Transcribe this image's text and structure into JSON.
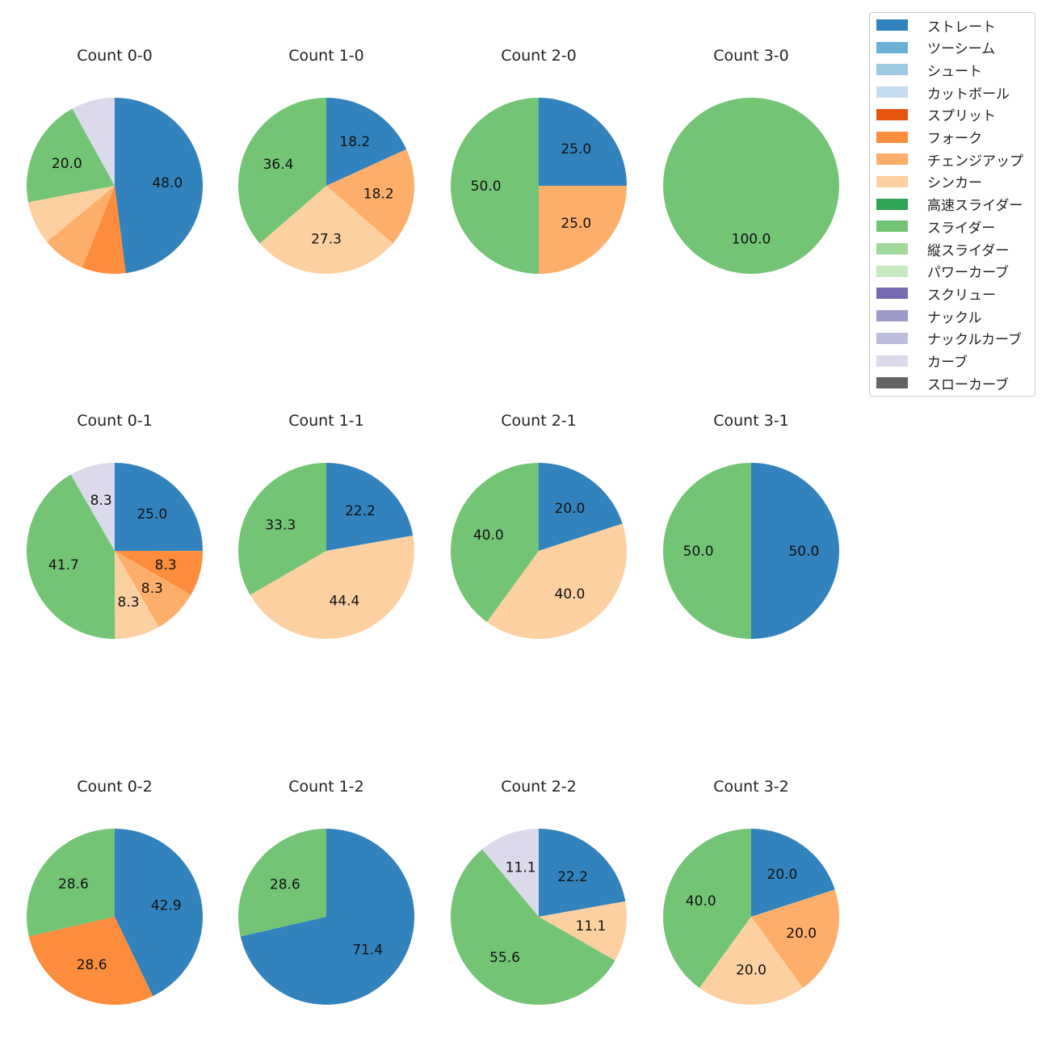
{
  "chart_data": {
    "type": "pie",
    "legend": {
      "placement": "top-right",
      "entries": [
        {
          "name": "ストレート",
          "color": "#3182bd"
        },
        {
          "name": "ツーシーム",
          "color": "#6baed6"
        },
        {
          "name": "シュート",
          "color": "#9ecae1"
        },
        {
          "name": "カットボール",
          "color": "#c6dbef"
        },
        {
          "name": "スプリット",
          "color": "#e6550d"
        },
        {
          "name": "フォーク",
          "color": "#fd8d3c"
        },
        {
          "name": "チェンジアップ",
          "color": "#fdae6b"
        },
        {
          "name": "シンカー",
          "color": "#fdd0a2"
        },
        {
          "name": "高速スライダー",
          "color": "#31a354"
        },
        {
          "name": "スライダー",
          "color": "#74c476"
        },
        {
          "name": "縦スライダー",
          "color": "#a1d99b"
        },
        {
          "name": "パワーカーブ",
          "color": "#c7e9c0"
        },
        {
          "name": "スクリュー",
          "color": "#756bb1"
        },
        {
          "name": "ナックル",
          "color": "#9e9ac8"
        },
        {
          "name": "ナックルカーブ",
          "color": "#bcbddc"
        },
        {
          "name": "カーブ",
          "color": "#dadaeb"
        },
        {
          "name": "スローカーブ",
          "color": "#636363"
        }
      ]
    },
    "pies": [
      {
        "title": "Count 0-0",
        "slices": [
          {
            "pitch": "ストレート",
            "value": 48.0,
            "label": "48.0"
          },
          {
            "pitch": "フォーク",
            "value": 8.0
          },
          {
            "pitch": "チェンジアップ",
            "value": 8.0
          },
          {
            "pitch": "シンカー",
            "value": 8.0
          },
          {
            "pitch": "スライダー",
            "value": 20.0,
            "label": "20.0"
          },
          {
            "pitch": "カーブ",
            "value": 8.0
          }
        ]
      },
      {
        "title": "Count 1-0",
        "slices": [
          {
            "pitch": "ストレート",
            "value": 18.2,
            "label": "18.2"
          },
          {
            "pitch": "チェンジアップ",
            "value": 18.2,
            "label": "18.2"
          },
          {
            "pitch": "シンカー",
            "value": 27.3,
            "label": "27.3"
          },
          {
            "pitch": "スライダー",
            "value": 36.4,
            "label": "36.4"
          }
        ]
      },
      {
        "title": "Count 2-0",
        "slices": [
          {
            "pitch": "ストレート",
            "value": 25.0,
            "label": "25.0"
          },
          {
            "pitch": "チェンジアップ",
            "value": 25.0,
            "label": "25.0"
          },
          {
            "pitch": "スライダー",
            "value": 50.0,
            "label": "50.0"
          }
        ]
      },
      {
        "title": "Count 3-0",
        "slices": [
          {
            "pitch": "スライダー",
            "value": 100.0,
            "label": "100.0"
          }
        ]
      },
      {
        "title": "Count 0-1",
        "slices": [
          {
            "pitch": "ストレート",
            "value": 25.0,
            "label": "25.0"
          },
          {
            "pitch": "フォーク",
            "value": 8.3,
            "label": "8.3"
          },
          {
            "pitch": "チェンジアップ",
            "value": 8.3,
            "label": "8.3"
          },
          {
            "pitch": "シンカー",
            "value": 8.3,
            "label": "8.3"
          },
          {
            "pitch": "スライダー",
            "value": 41.7,
            "label": "41.7"
          },
          {
            "pitch": "カーブ",
            "value": 8.3,
            "label": "8.3"
          }
        ]
      },
      {
        "title": "Count 1-1",
        "slices": [
          {
            "pitch": "ストレート",
            "value": 22.2,
            "label": "22.2"
          },
          {
            "pitch": "シンカー",
            "value": 44.4,
            "label": "44.4"
          },
          {
            "pitch": "スライダー",
            "value": 33.3,
            "label": "33.3"
          }
        ]
      },
      {
        "title": "Count 2-1",
        "slices": [
          {
            "pitch": "ストレート",
            "value": 20.0,
            "label": "20.0"
          },
          {
            "pitch": "シンカー",
            "value": 40.0,
            "label": "40.0"
          },
          {
            "pitch": "スライダー",
            "value": 40.0,
            "label": "40.0"
          }
        ]
      },
      {
        "title": "Count 3-1",
        "slices": [
          {
            "pitch": "ストレート",
            "value": 50.0,
            "label": "50.0"
          },
          {
            "pitch": "スライダー",
            "value": 50.0,
            "label": "50.0"
          }
        ]
      },
      {
        "title": "Count 0-2",
        "slices": [
          {
            "pitch": "ストレート",
            "value": 42.9,
            "label": "42.9"
          },
          {
            "pitch": "フォーク",
            "value": 28.6,
            "label": "28.6"
          },
          {
            "pitch": "スライダー",
            "value": 28.6,
            "label": "28.6"
          }
        ]
      },
      {
        "title": "Count 1-2",
        "slices": [
          {
            "pitch": "ストレート",
            "value": 71.4,
            "label": "71.4"
          },
          {
            "pitch": "スライダー",
            "value": 28.6,
            "label": "28.6"
          }
        ]
      },
      {
        "title": "Count 2-2",
        "slices": [
          {
            "pitch": "ストレート",
            "value": 22.2,
            "label": "22.2"
          },
          {
            "pitch": "シンカー",
            "value": 11.1,
            "label": "11.1"
          },
          {
            "pitch": "スライダー",
            "value": 55.6,
            "label": "55.6"
          },
          {
            "pitch": "カーブ",
            "value": 11.1,
            "label": "11.1"
          }
        ]
      },
      {
        "title": "Count 3-2",
        "slices": [
          {
            "pitch": "ストレート",
            "value": 20.0,
            "label": "20.0"
          },
          {
            "pitch": "チェンジアップ",
            "value": 20.0,
            "label": "20.0"
          },
          {
            "pitch": "シンカー",
            "value": 20.0,
            "label": "20.0"
          },
          {
            "pitch": "スライダー",
            "value": 40.0,
            "label": "40.0"
          }
        ]
      }
    ]
  }
}
